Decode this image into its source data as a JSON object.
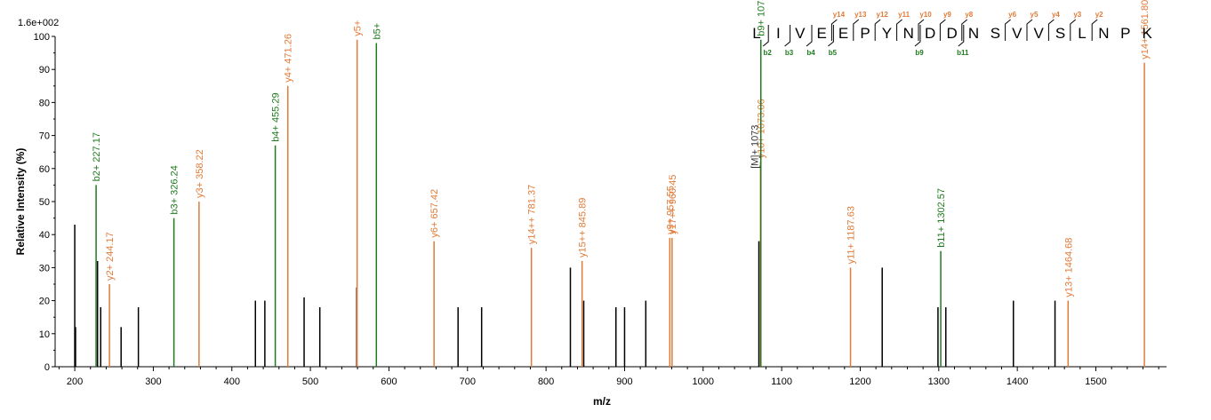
{
  "chart_data": {
    "type": "bar",
    "subtype": "mass-spectrum",
    "ymax_label": "1.6e+002",
    "xlabel": "m/z",
    "ylabel": "Relative   Intensity (%)",
    "xlim": [
      175,
      1590
    ],
    "ylim": [
      0,
      100
    ],
    "x_ticks": [
      200,
      300,
      400,
      500,
      600,
      700,
      800,
      900,
      1000,
      1100,
      1200,
      1300,
      1400,
      1500
    ],
    "y_ticks": [
      0,
      10,
      20,
      30,
      40,
      50,
      60,
      70,
      80,
      90,
      100
    ],
    "colors": {
      "b_ion": "#1f7a1f",
      "y_ion": "#e07b39",
      "unassigned": "#000000",
      "precursor": "#333333"
    },
    "peaks": [
      {
        "mz": 200.0,
        "intensity": 43,
        "kind": "unassigned"
      },
      {
        "mz": 201.0,
        "intensity": 12,
        "kind": "unassigned"
      },
      {
        "mz": 227.17,
        "intensity": 55,
        "kind": "b",
        "label": "b2+ 227.17"
      },
      {
        "mz": 229.0,
        "intensity": 32,
        "kind": "unassigned"
      },
      {
        "mz": 233.0,
        "intensity": 18,
        "kind": "unassigned"
      },
      {
        "mz": 244.17,
        "intensity": 25,
        "kind": "y",
        "label": "y2+ 244.17"
      },
      {
        "mz": 259.0,
        "intensity": 12,
        "kind": "unassigned"
      },
      {
        "mz": 281.0,
        "intensity": 18,
        "kind": "unassigned"
      },
      {
        "mz": 326.24,
        "intensity": 45,
        "kind": "b",
        "label": "b3+ 326.24"
      },
      {
        "mz": 358.22,
        "intensity": 50,
        "kind": "y",
        "label": "y3+ 358.22"
      },
      {
        "mz": 430.0,
        "intensity": 20,
        "kind": "unassigned"
      },
      {
        "mz": 442.0,
        "intensity": 20,
        "kind": "unassigned"
      },
      {
        "mz": 455.29,
        "intensity": 67,
        "kind": "b",
        "label": "b4+ 455.29"
      },
      {
        "mz": 471.26,
        "intensity": 85,
        "kind": "y",
        "label": "y4+ 471.26"
      },
      {
        "mz": 492.0,
        "intensity": 21,
        "kind": "unassigned"
      },
      {
        "mz": 512.0,
        "intensity": 18,
        "kind": "unassigned"
      },
      {
        "mz": 559.0,
        "intensity": 24,
        "kind": "unassigned"
      },
      {
        "mz": 559.5,
        "intensity": 99,
        "kind": "y",
        "label": "y5+"
      },
      {
        "mz": 584.0,
        "intensity": 98,
        "kind": "b",
        "label": "b5+"
      },
      {
        "mz": 657.42,
        "intensity": 38,
        "kind": "y",
        "label": "y6+ 657.42"
      },
      {
        "mz": 688.0,
        "intensity": 18,
        "kind": "unassigned"
      },
      {
        "mz": 718.0,
        "intensity": 18,
        "kind": "unassigned"
      },
      {
        "mz": 781.37,
        "intensity": 36,
        "kind": "y",
        "label": "y14++ 781.37"
      },
      {
        "mz": 831.0,
        "intensity": 30,
        "kind": "unassigned"
      },
      {
        "mz": 845.89,
        "intensity": 32,
        "kind": "y",
        "label": "y15++ 845.89"
      },
      {
        "mz": 848.0,
        "intensity": 20,
        "kind": "unassigned"
      },
      {
        "mz": 889.0,
        "intensity": 18,
        "kind": "unassigned"
      },
      {
        "mz": 900.0,
        "intensity": 18,
        "kind": "unassigned"
      },
      {
        "mz": 927.0,
        "intensity": 20,
        "kind": "unassigned"
      },
      {
        "mz": 957.55,
        "intensity": 39,
        "kind": "y",
        "label": "y9+ 957.55"
      },
      {
        "mz": 960.45,
        "intensity": 39,
        "kind": "y",
        "label": "y17++ 960.45"
      },
      {
        "mz": 1071.0,
        "intensity": 38,
        "kind": "unassigned"
      },
      {
        "mz": 1073.06,
        "intensity": 62,
        "kind": "y",
        "label": "y10+ 1073.06"
      },
      {
        "mz": 1073.5,
        "intensity": 99,
        "kind": "b",
        "label": "b9+ 1073.5"
      },
      {
        "mz": 1187.63,
        "intensity": 30,
        "kind": "y",
        "label": "y11+ 1187.63"
      },
      {
        "mz": 1228.0,
        "intensity": 30,
        "kind": "unassigned"
      },
      {
        "mz": 1299.0,
        "intensity": 18,
        "kind": "unassigned"
      },
      {
        "mz": 1302.57,
        "intensity": 35,
        "kind": "b",
        "label": "b11+ 1302.57"
      },
      {
        "mz": 1309.0,
        "intensity": 18,
        "kind": "unassigned"
      },
      {
        "mz": 1395.0,
        "intensity": 20,
        "kind": "unassigned"
      },
      {
        "mz": 1448.0,
        "intensity": 20,
        "kind": "unassigned"
      },
      {
        "mz": 1464.68,
        "intensity": 20,
        "kind": "y",
        "label": "y13+ 1464.68"
      },
      {
        "mz": 1561.8,
        "intensity": 92,
        "kind": "y",
        "label": "y14+ 1561.80"
      }
    ],
    "precursor_label": "[M]+ 1073",
    "sequence": [
      "L",
      "I",
      "V",
      "E",
      "E",
      "P",
      "Y",
      "N",
      "D",
      "D",
      "N",
      "S",
      "V",
      "V",
      "S",
      "L",
      "N",
      "P",
      "K"
    ],
    "b_ion_markers": [
      {
        "after": 1,
        "label": "b2"
      },
      {
        "after": 2,
        "label": "b3"
      },
      {
        "after": 3,
        "label": "b4"
      },
      {
        "after": 4,
        "label": "b5"
      },
      {
        "after": 8,
        "label": "b9"
      },
      {
        "after": 10,
        "label": "b11"
      }
    ],
    "y_ion_markers": [
      {
        "after": 4,
        "label": "y14"
      },
      {
        "after": 5,
        "label": "y13"
      },
      {
        "after": 6,
        "label": "y12"
      },
      {
        "after": 7,
        "label": "y11"
      },
      {
        "after": 8,
        "label": "y10"
      },
      {
        "after": 9,
        "label": "y9"
      },
      {
        "after": 10,
        "label": "y8"
      },
      {
        "after": 12,
        "label": "y6"
      },
      {
        "after": 13,
        "label": "y5"
      },
      {
        "after": 14,
        "label": "y4"
      },
      {
        "after": 15,
        "label": "y3"
      },
      {
        "after": 16,
        "label": "y2"
      }
    ]
  }
}
